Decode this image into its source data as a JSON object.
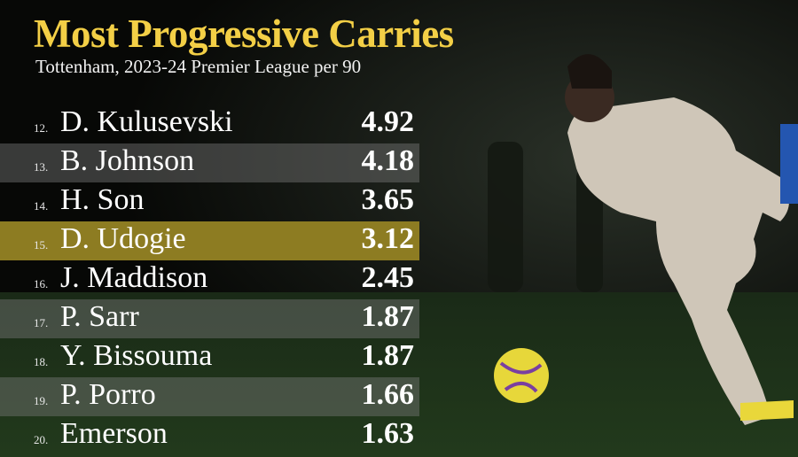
{
  "header": {
    "title": "Most Progressive Carries",
    "subtitle": "Tottenham, 2023-24 Premier League per 90"
  },
  "table": {
    "rows": [
      [
        "12.",
        "D. Kulusevski",
        "4.92"
      ],
      [
        "13.",
        "B. Johnson",
        "4.18"
      ],
      [
        "14.",
        "H. Son",
        "3.65"
      ],
      [
        "15.",
        "D. Udogie",
        "3.12"
      ],
      [
        "16.",
        "J. Maddison",
        "2.45"
      ],
      [
        "17.",
        "P. Sarr",
        "1.87"
      ],
      [
        "18.",
        "Y. Bissouma",
        "1.87"
      ],
      [
        "19.",
        "P. Porro",
        "1.66"
      ],
      [
        "20.",
        "Emerson",
        "1.63"
      ]
    ]
  }
}
